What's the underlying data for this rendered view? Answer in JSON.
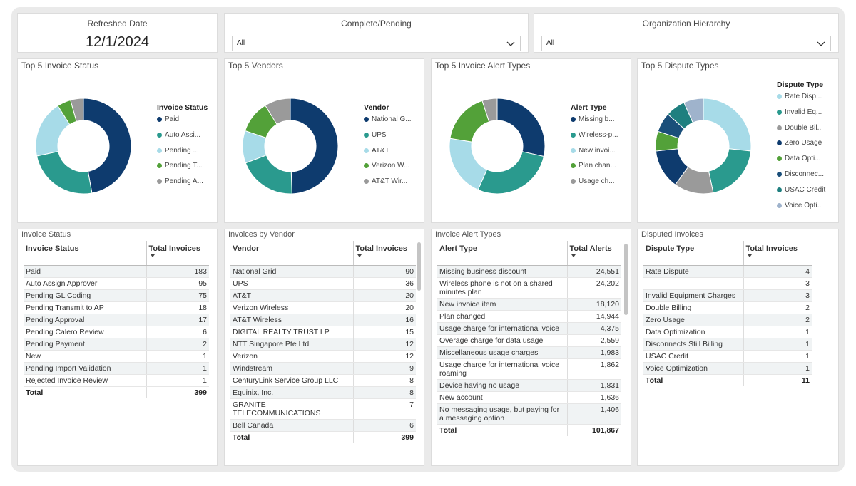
{
  "header": {
    "refreshed": {
      "label": "Refreshed Date",
      "value": "12/1/2024"
    },
    "complete_pending": {
      "label": "Complete/Pending",
      "value": "All"
    },
    "org_hierarchy": {
      "label": "Organization Hierarchy",
      "value": "All"
    }
  },
  "colors": {
    "navy": "#0e3b6e",
    "teal": "#2a9a8e",
    "light_blue": "#a7dbe8",
    "green": "#53a139",
    "gray": "#9a9a9a"
  },
  "chart_data": [
    {
      "type": "pie",
      "title": "Top 5 Invoice Status",
      "legend_title": "Invoice Status",
      "legend_position": "right",
      "categories": [
        "Paid",
        "Auto Assi...",
        "Pending ...",
        "Pending T...",
        "Pending A..."
      ],
      "values": [
        183,
        95,
        75,
        18,
        17
      ],
      "colors": [
        "#0e3b6e",
        "#2a9a8e",
        "#a7dbe8",
        "#53a139",
        "#9a9a9a"
      ]
    },
    {
      "type": "pie",
      "title": "Top 5 Vendors",
      "legend_title": "Vendor",
      "legend_position": "right",
      "categories": [
        "National G...",
        "UPS",
        "AT&T",
        "Verizon W...",
        "AT&T Wir..."
      ],
      "values": [
        90,
        36,
        20,
        20,
        16
      ],
      "colors": [
        "#0e3b6e",
        "#2a9a8e",
        "#a7dbe8",
        "#53a139",
        "#9a9a9a"
      ]
    },
    {
      "type": "pie",
      "title": "Top 5 Invoice Alert Types",
      "legend_title": "Alert Type",
      "legend_position": "right",
      "categories": [
        "Missing b...",
        "Wireless-p...",
        "New invoi...",
        "Plan chan...",
        "Usage ch..."
      ],
      "values": [
        24551,
        24202,
        18120,
        14944,
        4375
      ],
      "colors": [
        "#0e3b6e",
        "#2a9a8e",
        "#a7dbe8",
        "#53a139",
        "#9a9a9a"
      ]
    },
    {
      "type": "pie",
      "title": "Top 5 Dispute Types",
      "legend_title": "Dispute Type",
      "legend_position": "right",
      "categories": [
        "Rate Disp...",
        "Invalid Eq...",
        "Double Bil...",
        "Zero Usage",
        "Data Opti...",
        "Disconnec...",
        "USAC Credit",
        "Voice Opti..."
      ],
      "values": [
        4,
        3,
        2,
        2,
        1,
        1,
        1,
        1
      ],
      "colors": [
        "#a7dbe8",
        "#2a9a8e",
        "#9a9a9a",
        "#0e3b6e",
        "#53a139",
        "#1a4f7a",
        "#1f7f7f",
        "#9fb3cc"
      ]
    }
  ],
  "tables": {
    "invoice_status": {
      "title": "Invoice Status",
      "columns": [
        "Invoice Status",
        "Total Invoices"
      ],
      "rows": [
        [
          "Paid",
          "183"
        ],
        [
          "Auto Assign Approver",
          "95"
        ],
        [
          "Pending GL Coding",
          "75"
        ],
        [
          "Pending Transmit to AP",
          "18"
        ],
        [
          "Pending Approval",
          "17"
        ],
        [
          "Pending Calero Review",
          "6"
        ],
        [
          "Pending Payment",
          "2"
        ],
        [
          "New",
          "1"
        ],
        [
          "Pending Import Validation",
          "1"
        ],
        [
          "Rejected Invoice Review",
          "1"
        ]
      ],
      "total": [
        "Total",
        "399"
      ]
    },
    "invoices_by_vendor": {
      "title": "Invoices by Vendor",
      "columns": [
        "Vendor",
        "Total Invoices"
      ],
      "rows": [
        [
          "National Grid",
          "90"
        ],
        [
          "UPS",
          "36"
        ],
        [
          "AT&T",
          "20"
        ],
        [
          "Verizon Wireless",
          "20"
        ],
        [
          "AT&T Wireless",
          "16"
        ],
        [
          "DIGITAL REALTY TRUST LP",
          "15"
        ],
        [
          "NTT Singapore Pte Ltd",
          "12"
        ],
        [
          "Verizon",
          "12"
        ],
        [
          "Windstream",
          "9"
        ],
        [
          "CenturyLink Service Group LLC",
          "8"
        ],
        [
          "Equinix, Inc.",
          "8"
        ],
        [
          "GRANITE TELECOMMUNICATIONS",
          "7"
        ],
        [
          "Bell Canada",
          "6"
        ]
      ],
      "total": [
        "Total",
        "399"
      ]
    },
    "invoice_alert_types": {
      "title": "Invoice Alert Types",
      "columns": [
        "Alert Type",
        "Total Alerts"
      ],
      "rows": [
        [
          "Missing business discount",
          "24,551"
        ],
        [
          "Wireless phone is not on a shared minutes plan",
          "24,202"
        ],
        [
          "New invoice item",
          "18,120"
        ],
        [
          "Plan changed",
          "14,944"
        ],
        [
          "Usage charge for international voice",
          "4,375"
        ],
        [
          "Overage charge for data usage",
          "2,559"
        ],
        [
          "Miscellaneous usage charges",
          "1,983"
        ],
        [
          "Usage charge for international voice roaming",
          "1,862"
        ],
        [
          "Device having no usage",
          "1,831"
        ],
        [
          "New account",
          "1,636"
        ],
        [
          "No messaging usage, but paying for a messaging option",
          "1,406"
        ]
      ],
      "total": [
        "Total",
        "101,867"
      ]
    },
    "disputed_invoices": {
      "title": "Disputed Invoices",
      "columns": [
        "Dispute Type",
        "Total Invoices"
      ],
      "rows": [
        [
          "Rate Dispute",
          "4"
        ],
        [
          "",
          "3"
        ],
        [
          "Invalid Equipment Charges",
          "3"
        ],
        [
          "Double Billing",
          "2"
        ],
        [
          "Zero Usage",
          "2"
        ],
        [
          "Data Optimization",
          "1"
        ],
        [
          "Disconnects Still Billing",
          "1"
        ],
        [
          "USAC Credit",
          "1"
        ],
        [
          "Voice Optimization",
          "1"
        ]
      ],
      "total": [
        "Total",
        "11"
      ]
    }
  }
}
